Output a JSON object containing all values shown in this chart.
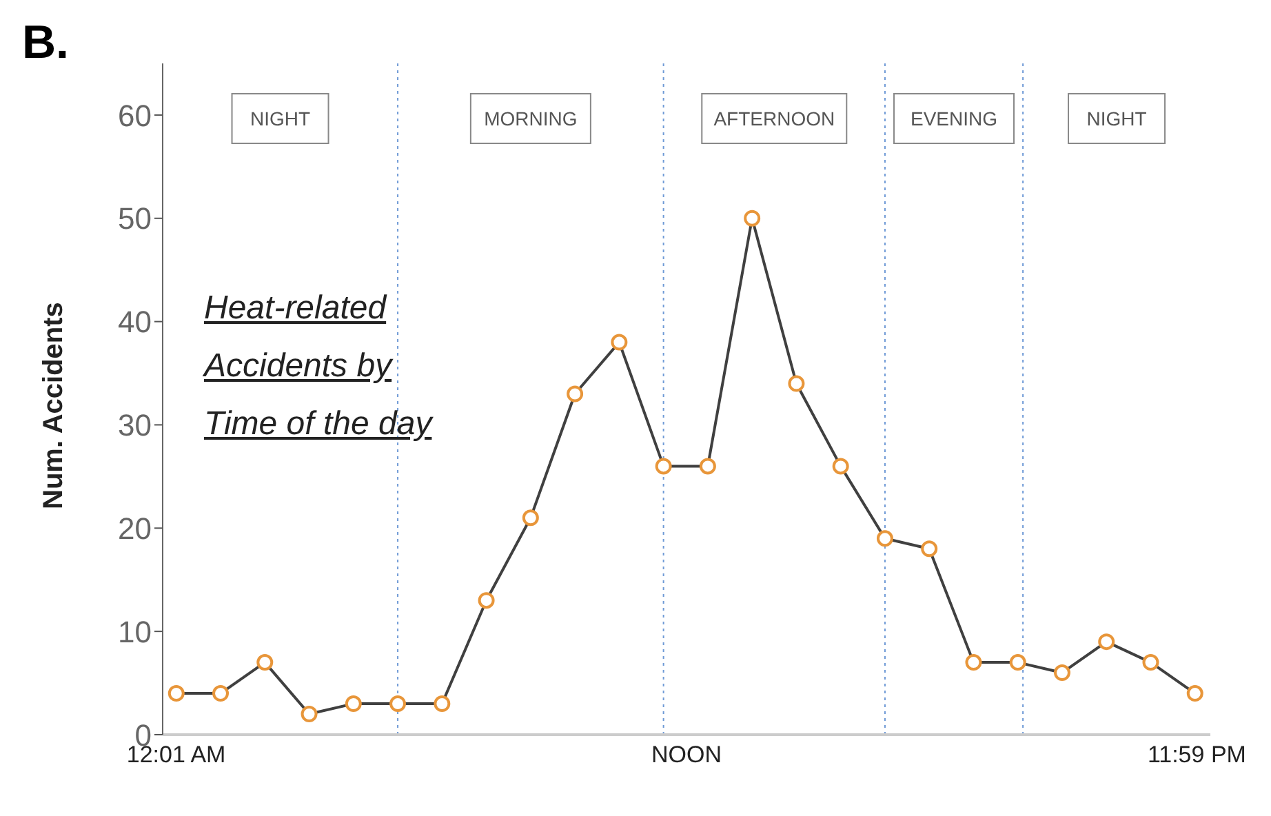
{
  "chart_data": {
    "type": "line",
    "title": "B.",
    "ylabel": "Num. Accidents",
    "x": [
      0.02,
      1.06,
      2.1,
      3.14,
      4.18,
      5.22,
      6.26,
      7.3,
      8.34,
      9.38,
      10.42,
      11.46,
      12.5,
      13.54,
      14.58,
      15.62,
      16.66,
      17.7,
      18.74,
      19.78,
      20.82,
      21.86,
      22.9,
      23.94
    ],
    "series": [
      {
        "color": "#404040",
        "values": [
          4,
          4,
          7,
          2,
          3,
          3,
          3,
          13,
          21,
          33,
          38,
          26,
          26,
          50,
          34,
          26,
          19,
          18,
          7,
          7,
          6,
          9,
          7,
          4
        ]
      }
    ],
    "marker": "circle",
    "xlim": [
      -0.3,
      24.3
    ],
    "xticks": [
      {
        "value": 0.017,
        "label": "12:01 AM"
      },
      {
        "value": 12,
        "label": "NOON"
      },
      {
        "value": 23.983,
        "label": "11:59 PM"
      }
    ],
    "ylim": [
      0,
      65
    ],
    "yticks": [
      0,
      10,
      20,
      30,
      40,
      50,
      60
    ],
    "ref_lines": [
      {
        "axis": "x",
        "value": 5.22,
        "color": "#6f9ad6",
        "line_style": "dotted"
      },
      {
        "axis": "x",
        "value": 11.46,
        "color": "#6f9ad6",
        "line_style": "dotted"
      },
      {
        "axis": "x",
        "value": 16.66,
        "color": "#6f9ad6",
        "line_style": "dotted"
      },
      {
        "axis": "x",
        "value": 19.9,
        "color": "#6f9ad6",
        "line_style": "dotted"
      }
    ],
    "annotations": [
      "Heat-related Accidents by Time of the day",
      "NIGHT",
      "MORNING",
      "AFTERNOON",
      "EVENING",
      "NIGHT"
    ],
    "grid": false,
    "legend": false
  }
}
